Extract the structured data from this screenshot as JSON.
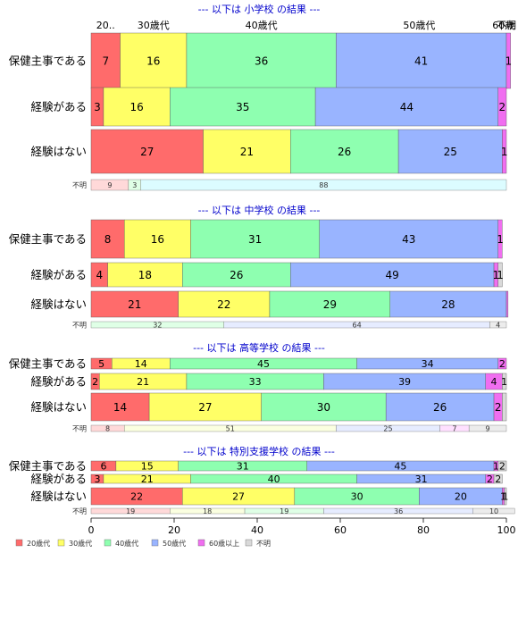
{
  "chart_data": {
    "type": "bar",
    "orientation": "horizontal",
    "stacked": true,
    "xlim": [
      0,
      100
    ],
    "x_ticks": [
      "0",
      "20",
      "40",
      "60",
      "80",
      "100"
    ],
    "colors": {
      "20歳代": "#ff6b6b",
      "30歳代": "#ffff66",
      "40歳代": "#8effb0",
      "50歳代": "#99b4ff",
      "60歳以上": "#f06ef0",
      "不明": "#d9d9d9"
    },
    "legend": {
      "placement": "bottom-left",
      "entries": [
        "20歳代",
        "30歳代",
        "40歳代",
        "50歳代",
        "60歳以上",
        "不明"
      ]
    },
    "top_group_labels": [
      {
        "text": "20..",
        "at": 3.5
      },
      {
        "text": "30歳代",
        "at": 15
      },
      {
        "text": "40歳代",
        "at": 41
      },
      {
        "text": "50歳代",
        "at": 79
      },
      {
        "text": "60歳",
        "at": 99.3
      },
      {
        "text": "不明",
        "at": 100
      }
    ],
    "sections": [
      {
        "title": "--- 以下は 小学校 の結果 ---",
        "rows": [
          {
            "label": "保健主事である",
            "values": [
              7,
              16,
              36,
              41,
              1,
              0
            ],
            "value_labels": [
              "7",
              "16",
              "36",
              "41",
              "1",
              ""
            ]
          },
          {
            "label": "経験がある",
            "values": [
              3,
              16,
              35,
              44,
              2,
              0
            ],
            "value_labels": [
              "3",
              "16",
              "35",
              "44",
              "2",
              ""
            ]
          },
          {
            "label": "経験はない",
            "values": [
              27,
              21,
              26,
              25,
              1,
              0
            ],
            "value_labels": [
              "27",
              "21",
              "26",
              "25",
              "1",
              ""
            ]
          }
        ],
        "unknown_label": "不明",
        "unknown": {
          "values": [
            9,
            3,
            88
          ],
          "colors": [
            "#ffd9d9",
            "#dfffe6",
            "#dcfcff"
          ],
          "labels": [
            "9",
            "3",
            "88"
          ]
        }
      },
      {
        "title": "--- 以下は 中学校 の結果 ---",
        "rows": [
          {
            "label": "保健主事である",
            "values": [
              8,
              16,
              31,
              43,
              1,
              0
            ],
            "value_labels": [
              "8",
              "16",
              "31",
              "43",
              "1",
              ""
            ]
          },
          {
            "label": "経験がある",
            "values": [
              4,
              18,
              26,
              49,
              1,
              1
            ],
            "value_labels": [
              "4",
              "18",
              "26",
              "49",
              "1",
              "1"
            ]
          },
          {
            "label": "経験はない",
            "values": [
              21,
              22,
              29,
              28,
              0.4,
              0
            ],
            "value_labels": [
              "21",
              "22",
              "29",
              "28",
              "",
              ""
            ]
          }
        ],
        "unknown_label": "不明",
        "unknown": {
          "values": [
            32,
            64,
            4
          ],
          "colors": [
            "#dfffe6",
            "#e6ecff",
            "#ececec"
          ],
          "labels": [
            "32",
            "64",
            "4"
          ]
        }
      },
      {
        "title": "--- 以下は 高等学校 の結果 ---",
        "rows": [
          {
            "label": "保健主事である",
            "values": [
              5,
              14,
              45,
              34,
              2,
              0
            ],
            "value_labels": [
              "5",
              "14",
              "45",
              "34",
              "2",
              ""
            ]
          },
          {
            "label": "経験がある",
            "values": [
              2,
              21,
              33,
              39,
              4,
              1
            ],
            "value_labels": [
              "2",
              "21",
              "33",
              "39",
              "4",
              "1"
            ]
          },
          {
            "label": "経験はない",
            "values": [
              14,
              27,
              30,
              26,
              2,
              1
            ],
            "value_labels": [
              "14",
              "27",
              "30",
              "26",
              "2",
              ""
            ]
          }
        ],
        "unknown_label": "不明",
        "unknown": {
          "values": [
            8,
            51,
            25,
            7,
            9
          ],
          "colors": [
            "#ffd9d9",
            "#fbffe0",
            "#e6ecff",
            "#ffe0ff",
            "#ececec"
          ],
          "labels": [
            "8",
            "51",
            "25",
            "7",
            "9"
          ]
        }
      },
      {
        "title": "--- 以下は 特別支援学校 の結果 ---",
        "rows": [
          {
            "label": "保健主事である",
            "values": [
              6,
              15,
              31,
              45,
              1,
              2
            ],
            "value_labels": [
              "6",
              "15",
              "31",
              "45",
              "1",
              "2"
            ]
          },
          {
            "label": "経験がある",
            "values": [
              3,
              21,
              40,
              31,
              2,
              2
            ],
            "value_labels": [
              "3",
              "21",
              "40",
              "31",
              "2",
              "2"
            ]
          },
          {
            "label": "経験はない",
            "values": [
              22,
              27,
              30,
              20,
              0.5,
              0.5
            ],
            "value_labels": [
              "22",
              "27",
              "30",
              "20",
              "1",
              "1"
            ]
          }
        ],
        "unknown_label": "不明",
        "unknown": {
          "values": [
            19,
            18,
            19,
            36,
            10
          ],
          "colors": [
            "#ffd9d9",
            "#fbffe0",
            "#dfffe6",
            "#e6ecff",
            "#ececec"
          ],
          "labels": [
            "19",
            "18",
            "19",
            "36",
            "10"
          ]
        }
      }
    ]
  }
}
